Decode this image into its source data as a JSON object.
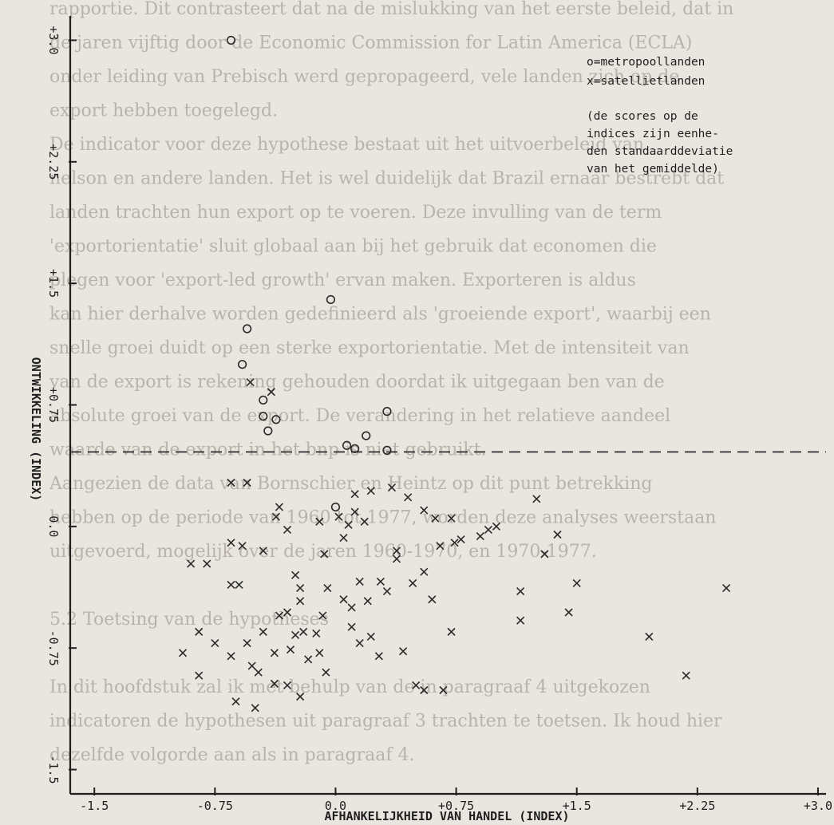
{
  "chart_data": {
    "type": "scatter",
    "title": "",
    "xlabel": "AFHANKELIJKHEID VAN HANDEL (INDEX)",
    "ylabel": "ONTWIKKELING (INDEX)",
    "xlim": [
      -1.65,
      3.05
    ],
    "ylim": [
      -1.65,
      3.15
    ],
    "x_tick_labels": [
      "-1.5",
      "-0.75",
      "0.0",
      "+0.75",
      "+1.5",
      "+2.25",
      "+3.0"
    ],
    "x_tick_values": [
      -1.5,
      -0.75,
      0.0,
      0.75,
      1.5,
      2.25,
      3.0
    ],
    "y_tick_labels": [
      "-1.5",
      "-0.75",
      "0.0",
      "+0.75",
      "+1.5",
      "+2.25",
      "+3.0"
    ],
    "y_tick_values": [
      -1.5,
      -0.75,
      0.0,
      0.75,
      1.5,
      2.25,
      3.0
    ],
    "reference_line_y": 0.46,
    "legend": {
      "lines": [
        "o=metropoollanden",
        "x=satellietlanden"
      ],
      "note_lines": [
        "(de scores op de",
        "indices zijn eenhe-",
        "den standaarddeviatie",
        "van het gemiddelde)"
      ],
      "placement": "top-right"
    },
    "series": [
      {
        "marker": "o",
        "points": [
          [
            -0.65,
            3.0
          ],
          [
            -0.55,
            1.22
          ],
          [
            -0.58,
            1.0
          ],
          [
            -0.45,
            0.78
          ],
          [
            -0.45,
            0.68
          ],
          [
            -0.42,
            0.59
          ],
          [
            -0.37,
            0.66
          ],
          [
            -0.03,
            1.4
          ],
          [
            0.32,
            0.71
          ],
          [
            0.32,
            0.47
          ],
          [
            0.19,
            0.56
          ],
          [
            0.12,
            0.48
          ],
          [
            0.07,
            0.5
          ],
          [
            0.0,
            0.12
          ]
        ]
      },
      {
        "marker": "x",
        "points": [
          [
            -0.53,
            0.89
          ],
          [
            -0.4,
            0.83
          ],
          [
            -0.65,
            0.27
          ],
          [
            -0.55,
            0.27
          ],
          [
            -0.35,
            0.12
          ],
          [
            -0.37,
            0.06
          ],
          [
            -0.3,
            -0.02
          ],
          [
            -0.1,
            0.03
          ],
          [
            -0.65,
            -0.36
          ],
          [
            -0.6,
            -0.36
          ],
          [
            -0.9,
            -0.23
          ],
          [
            -0.8,
            -0.23
          ],
          [
            -0.35,
            -0.55
          ],
          [
            -0.3,
            -0.53
          ],
          [
            -0.22,
            -0.46
          ],
          [
            -0.2,
            -0.65
          ],
          [
            -0.28,
            -0.76
          ],
          [
            -0.1,
            -0.78
          ],
          [
            -0.65,
            -0.1
          ],
          [
            -0.58,
            -0.12
          ],
          [
            -0.45,
            -0.15
          ],
          [
            -0.25,
            -0.3
          ],
          [
            -0.22,
            -0.38
          ],
          [
            -0.05,
            -0.38
          ],
          [
            -0.08,
            -0.55
          ],
          [
            0.05,
            -0.45
          ],
          [
            0.1,
            -0.5
          ],
          [
            0.1,
            -0.62
          ],
          [
            0.15,
            -0.34
          ],
          [
            0.2,
            -0.46
          ],
          [
            0.28,
            -0.34
          ],
          [
            0.32,
            -0.4
          ],
          [
            0.38,
            -0.2
          ],
          [
            0.48,
            -0.35
          ],
          [
            0.55,
            -0.28
          ],
          [
            0.6,
            -0.45
          ],
          [
            0.65,
            -0.12
          ],
          [
            0.74,
            -0.1
          ],
          [
            0.78,
            -0.08
          ],
          [
            0.9,
            -0.06
          ],
          [
            0.95,
            -0.02
          ],
          [
            0.55,
            0.1
          ],
          [
            0.62,
            0.05
          ],
          [
            0.72,
            0.05
          ],
          [
            1.0,
            0.0
          ],
          [
            1.25,
            0.17
          ],
          [
            0.12,
            0.09
          ],
          [
            0.18,
            0.03
          ],
          [
            0.08,
            0.01
          ],
          [
            0.05,
            -0.07
          ],
          [
            0.02,
            0.06
          ],
          [
            -0.07,
            -0.17
          ],
          [
            0.12,
            0.2
          ],
          [
            0.22,
            0.22
          ],
          [
            0.35,
            0.24
          ],
          [
            0.45,
            0.18
          ],
          [
            0.38,
            -0.15
          ],
          [
            0.15,
            -0.72
          ],
          [
            0.22,
            -0.68
          ],
          [
            0.27,
            -0.8
          ],
          [
            -0.17,
            -0.82
          ],
          [
            -0.06,
            -0.9
          ],
          [
            -0.3,
            -0.98
          ],
          [
            -0.22,
            -1.05
          ],
          [
            0.42,
            -0.77
          ],
          [
            0.5,
            -0.98
          ],
          [
            0.55,
            -1.01
          ],
          [
            0.67,
            -1.01
          ],
          [
            0.72,
            -0.65
          ],
          [
            1.15,
            -0.58
          ],
          [
            1.15,
            -0.4
          ],
          [
            1.3,
            -0.17
          ],
          [
            1.38,
            -0.05
          ],
          [
            1.5,
            -0.35
          ],
          [
            1.45,
            -0.53
          ],
          [
            1.95,
            -0.68
          ],
          [
            2.18,
            -0.92
          ],
          [
            2.43,
            -0.38
          ],
          [
            -0.85,
            -0.65
          ],
          [
            -0.75,
            -0.72
          ],
          [
            -0.85,
            -0.92
          ],
          [
            -0.95,
            -0.78
          ],
          [
            -0.65,
            -0.8
          ],
          [
            -0.55,
            -0.72
          ],
          [
            -0.48,
            -0.9
          ],
          [
            -0.38,
            -0.78
          ],
          [
            -0.25,
            -0.67
          ],
          [
            -0.12,
            -0.66
          ],
          [
            -0.45,
            -0.65
          ],
          [
            -0.5,
            -1.12
          ],
          [
            -0.38,
            -0.97
          ],
          [
            -0.52,
            -0.86
          ],
          [
            -0.62,
            -1.08
          ]
        ]
      }
    ],
    "background_text_lines": [
      "rapportie. Dit contrasteert dat na de mislukking van het eerste beleid, dat in",
      "de jaren vijftig door de Economic Commission for Latin America (ECLA)",
      "onder leiding van Prebisch werd gepropageerd, vele landen zich op de",
      "export hebben toegelegd.",
      "De indicator voor deze hypothese bestaat uit het uitvoerbeleid van",
      "nelson en andere landen. Het is wel duidelijk dat Brazil ernaar bestrebt dat",
      "landen trachten hun export op te voeren. Deze invulling van de term",
      "'exportorientatie' sluit globaal aan bij het gebruik dat economen die",
      "plegen voor 'export-led growth' ervan maken. Exporteren is aldus",
      "kan hier derhalve worden gedefinieerd als 'groeiende export', waarbij een",
      "snelle groei duidt op een sterke exportorientatie. Met de intensiteit van",
      "van de export is rekening gehouden doordat ik uitgegaan ben van de",
      "absolute groei van de export. De verandering in het relatieve aandeel",
      "waarde van de export in het bnp is niet gebruikt.",
      "Aangezien de data van Bornschier en Heintz op dit punt betrekking",
      "hebben op de periode van 1960 tot 1977, worden deze analyses weerstaan",
      "uitgevoerd, mogelijk over de jaren 1960-1970, en 1970-1977.",
      "",
      "5.2 Toetsing van de hypotheses",
      "",
      "In dit hoofdstuk zal ik met behulp van de in paragraaf 4 uitgekozen",
      "indicatoren de hypothesen uit paragraaf 3 trachten te toetsen. Ik houd hier",
      "dezelfde volgorde aan als in paragraaf 4."
    ]
  }
}
